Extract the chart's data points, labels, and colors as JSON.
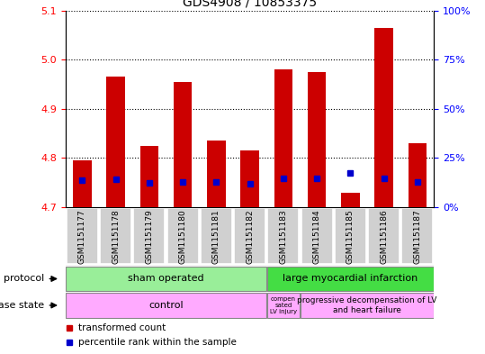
{
  "title": "GDS4908 / 10853375",
  "samples": [
    "GSM1151177",
    "GSM1151178",
    "GSM1151179",
    "GSM1151180",
    "GSM1151181",
    "GSM1151182",
    "GSM1151183",
    "GSM1151184",
    "GSM1151185",
    "GSM1151186",
    "GSM1151187"
  ],
  "bar_bottom": 4.7,
  "bar_tops": [
    4.795,
    4.965,
    4.825,
    4.955,
    4.835,
    4.815,
    4.98,
    4.975,
    4.73,
    5.065,
    4.83
  ],
  "percentile_values": [
    4.755,
    4.756,
    4.75,
    4.752,
    4.752,
    4.748,
    4.758,
    4.758,
    4.77,
    4.758,
    4.752
  ],
  "ylim_left": [
    4.7,
    5.1
  ],
  "ylim_right": [
    0,
    100
  ],
  "yticks_left": [
    4.7,
    4.8,
    4.9,
    5.0,
    5.1
  ],
  "yticks_right": [
    0,
    25,
    50,
    75,
    100
  ],
  "bar_color": "#cc0000",
  "percentile_color": "#0000cc",
  "protocol_sham_label": "sham operated",
  "protocol_lmi_label": "large myocardial infarction",
  "disease_control_label": "control",
  "disease_comp_label": "compen\nsated\nLV injury",
  "disease_prog_label": "progressive decompensation of LV\nand heart failure",
  "protocol_row_label": "protocol",
  "disease_row_label": "disease state",
  "legend_bar_label": "transformed count",
  "legend_pct_label": "percentile rank within the sample",
  "sham_color": "#99ee99",
  "lmi_color": "#44dd44",
  "disease_color": "#ffaaff",
  "sample_box_color": "#d0d0d0",
  "n_sham": 6,
  "n_lmi": 5
}
